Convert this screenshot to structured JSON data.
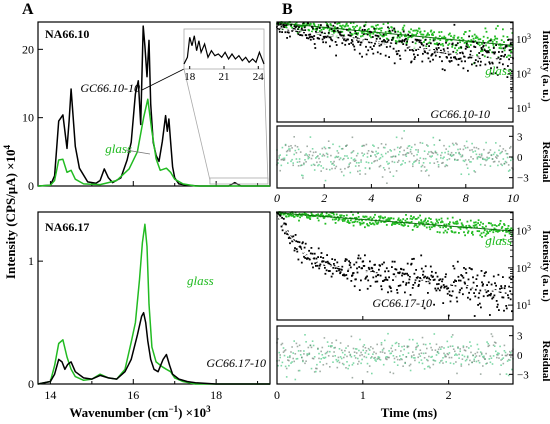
{
  "figure": {
    "panel_a_letter": "A",
    "panel_b_letter": "B",
    "y_label_left": "Intensity (CPS/μA) ×10",
    "y_label_left_sup": "4",
    "x_label_left": "Wavenumber (cm",
    "x_label_left_sup": "−1",
    "x_label_left_tail": ") ×10",
    "x_label_left_sup2": "3",
    "x_label_right": "Time (ms)",
    "y_label_right_int": "Intensity (a. u.)",
    "y_label_right_res": "Residual",
    "colors": {
      "glass": "#22bb22",
      "glass_cloud": "#2ecc40",
      "gc": "#000000",
      "residual_fill": "#7fd8a8",
      "axis": "#000000",
      "inset_line": "#aaaaaa"
    }
  },
  "chart_data": [
    {
      "id": "a1",
      "type": "line",
      "title": "NA66.10",
      "x_ticks": [
        14,
        16,
        18
      ],
      "y_ticks": [
        0,
        10,
        20
      ],
      "xlim": [
        13.7,
        19.3
      ],
      "ylim": [
        0,
        24
      ],
      "annotations": [
        "GC66.10-10",
        "glass"
      ],
      "series": [
        {
          "name": "GC66.10-10",
          "color": "#000000",
          "x": [
            13.7,
            14.0,
            14.1,
            14.2,
            14.3,
            14.4,
            14.45,
            14.5,
            14.6,
            14.7,
            14.9,
            15.1,
            15.2,
            15.3,
            15.4,
            15.5,
            15.7,
            15.85,
            15.95,
            16.05,
            16.12,
            16.18,
            16.24,
            16.28,
            16.33,
            16.38,
            16.42,
            16.48,
            16.55,
            16.62,
            16.7,
            16.78,
            16.82,
            16.86,
            16.9,
            16.95,
            17.0,
            17.1,
            17.3,
            17.6,
            18.0,
            18.3,
            18.45,
            18.6,
            19.0,
            19.3
          ],
          "y": [
            0,
            0.1,
            1.5,
            9.5,
            10.4,
            5.5,
            9.5,
            14.2,
            5.8,
            2.6,
            0.6,
            0.4,
            0.8,
            2.5,
            1.2,
            0.5,
            1.2,
            3.8,
            6.4,
            13.5,
            15.4,
            9.0,
            23.4,
            20.5,
            16.0,
            21.3,
            12.0,
            6.4,
            4.5,
            3.6,
            6.5,
            10.3,
            8.0,
            9.8,
            6.5,
            2.8,
            1.2,
            0.3,
            0.1,
            0.0,
            0.0,
            0.0,
            0.5,
            0.0,
            0.0,
            0.0
          ]
        },
        {
          "name": "glass",
          "color": "#22bb22",
          "x": [
            13.7,
            14.0,
            14.1,
            14.2,
            14.3,
            14.4,
            14.5,
            14.6,
            14.8,
            15.2,
            15.4,
            15.6,
            15.9,
            16.1,
            16.25,
            16.35,
            16.45,
            16.55,
            16.65,
            16.8,
            16.9,
            17.0,
            17.2,
            17.5,
            18.0,
            19.3
          ],
          "y": [
            0,
            0.1,
            0.8,
            3.8,
            3.9,
            2.0,
            2.3,
            1.0,
            0.3,
            0.2,
            0.5,
            0.8,
            2.5,
            5.0,
            10.0,
            12.7,
            8.0,
            4.0,
            2.3,
            2.6,
            2.0,
            1.0,
            0.3,
            0.0,
            0.0,
            0.0
          ]
        }
      ],
      "inset": {
        "x_ticks": [
          18,
          21,
          24
        ],
        "xlim": [
          17.5,
          24.5
        ],
        "x": [
          17.5,
          17.8,
          18.0,
          18.2,
          18.4,
          18.6,
          18.8,
          19.0,
          19.3,
          19.6,
          19.9,
          20.2,
          20.5,
          20.8,
          21.1,
          21.4,
          21.7,
          22.0,
          22.3,
          22.6,
          22.9,
          23.2,
          23.5,
          23.8,
          24.1,
          24.5
        ],
        "y": [
          0.15,
          0.35,
          0.95,
          0.7,
          1.0,
          0.55,
          0.85,
          0.5,
          0.75,
          0.35,
          0.55,
          0.4,
          0.45,
          0.35,
          0.5,
          0.3,
          0.45,
          0.3,
          0.4,
          0.25,
          0.35,
          0.2,
          0.3,
          0.2,
          0.5,
          0.15
        ]
      }
    },
    {
      "id": "a2",
      "type": "line",
      "title": "NA66.17",
      "x_ticks": [
        14,
        16,
        18
      ],
      "y_ticks": [
        0,
        1
      ],
      "xlim": [
        13.7,
        19.3
      ],
      "ylim": [
        0,
        1.4
      ],
      "annotations": [
        "glass",
        "GC66.17-10"
      ],
      "series": [
        {
          "name": "glass",
          "color": "#22bb22",
          "x": [
            13.7,
            14.0,
            14.1,
            14.2,
            14.3,
            14.4,
            14.5,
            14.6,
            14.8,
            15.0,
            15.2,
            15.4,
            15.6,
            15.8,
            15.95,
            16.05,
            16.15,
            16.22,
            16.28,
            16.33,
            16.38,
            16.45,
            16.55,
            16.7,
            16.8,
            16.9,
            17.0,
            17.2,
            17.5,
            18.0,
            19.3
          ],
          "y": [
            0,
            0.02,
            0.15,
            0.33,
            0.36,
            0.22,
            0.12,
            0.06,
            0.03,
            0.04,
            0.08,
            0.05,
            0.04,
            0.12,
            0.34,
            0.5,
            0.85,
            1.15,
            1.3,
            1.12,
            0.65,
            0.3,
            0.18,
            0.14,
            0.12,
            0.1,
            0.05,
            0.02,
            0,
            0,
            0
          ]
        },
        {
          "name": "GC66.17-10",
          "color": "#000000",
          "x": [
            13.7,
            14.0,
            14.1,
            14.2,
            14.28,
            14.35,
            14.42,
            14.5,
            14.6,
            14.8,
            15.0,
            15.2,
            15.4,
            15.6,
            15.8,
            15.95,
            16.1,
            16.2,
            16.25,
            16.3,
            16.35,
            16.42,
            16.5,
            16.6,
            16.72,
            16.8,
            16.88,
            16.95,
            17.1,
            17.3,
            17.5,
            18.0,
            19.3
          ],
          "y": [
            0,
            0.02,
            0.08,
            0.2,
            0.18,
            0.12,
            0.16,
            0.18,
            0.1,
            0.05,
            0.04,
            0.07,
            0.05,
            0.04,
            0.1,
            0.2,
            0.4,
            0.55,
            0.58,
            0.5,
            0.35,
            0.2,
            0.12,
            0.1,
            0.2,
            0.24,
            0.15,
            0.08,
            0.04,
            0.02,
            0.01,
            0,
            0
          ]
        }
      ]
    },
    {
      "id": "b1",
      "type": "scatter",
      "x_ticks": [
        0,
        2,
        4,
        6,
        8,
        10
      ],
      "xlim": [
        0,
        10
      ],
      "ylog": true,
      "ylim_log10": [
        0.6,
        3.5
      ],
      "y_tick_labels": [
        "10",
        "10",
        "10"
      ],
      "y_tick_sups": [
        "1",
        "2",
        "3"
      ],
      "y_tick_values": [
        10,
        100,
        1000
      ],
      "annotations": [
        "glass",
        "GC66.10-10"
      ],
      "series": [
        {
          "name": "glass",
          "color": "#22bb22",
          "kind": "exponential",
          "I0": 3000,
          "tau_ms": 6.6,
          "scatter": 0.08
        },
        {
          "name": "GC66.10-10",
          "color": "#000000",
          "kind": "exponential",
          "I0": 2200,
          "tau_ms": 4.3,
          "scatter": 0.12
        }
      ]
    },
    {
      "id": "b1r",
      "type": "scatter",
      "xlim": [
        0,
        10
      ],
      "ylim": [
        -4.5,
        4.5
      ],
      "y_ticks": [
        3,
        0,
        -3
      ],
      "y_tick_labels": [
        "3",
        "0",
        "−3"
      ],
      "residual_sd": 1.2
    },
    {
      "id": "b2",
      "type": "scatter",
      "x_ticks": [
        0,
        1,
        2
      ],
      "xlim": [
        0,
        2.75
      ],
      "ylog": true,
      "ylim_log10": [
        0.6,
        3.5
      ],
      "y_tick_labels": [
        "10",
        "10",
        "10"
      ],
      "y_tick_sups": [
        "1",
        "2",
        "3"
      ],
      "y_tick_values": [
        10,
        100,
        1000
      ],
      "annotations": [
        "glass",
        "GC66.17-10"
      ],
      "series": [
        {
          "name": "glass",
          "color": "#22bb22",
          "kind": "exponential",
          "I0": 3000,
          "tau_ms": 2.45,
          "scatter": 0.05
        },
        {
          "name": "GC66.17-10",
          "color": "#000000",
          "kind": "biexponential",
          "A1": 2600,
          "tau1_ms": 0.1,
          "A2": 175,
          "tau2_ms": 1.3,
          "scatter": 0.13
        }
      ]
    },
    {
      "id": "b2r",
      "type": "scatter",
      "xlim": [
        0,
        2.75
      ],
      "ylim": [
        -4.5,
        4.5
      ],
      "y_ticks": [
        3,
        0,
        -3
      ],
      "y_tick_labels": [
        "3",
        "0",
        "−3"
      ],
      "residual_sd": 1.2
    }
  ]
}
